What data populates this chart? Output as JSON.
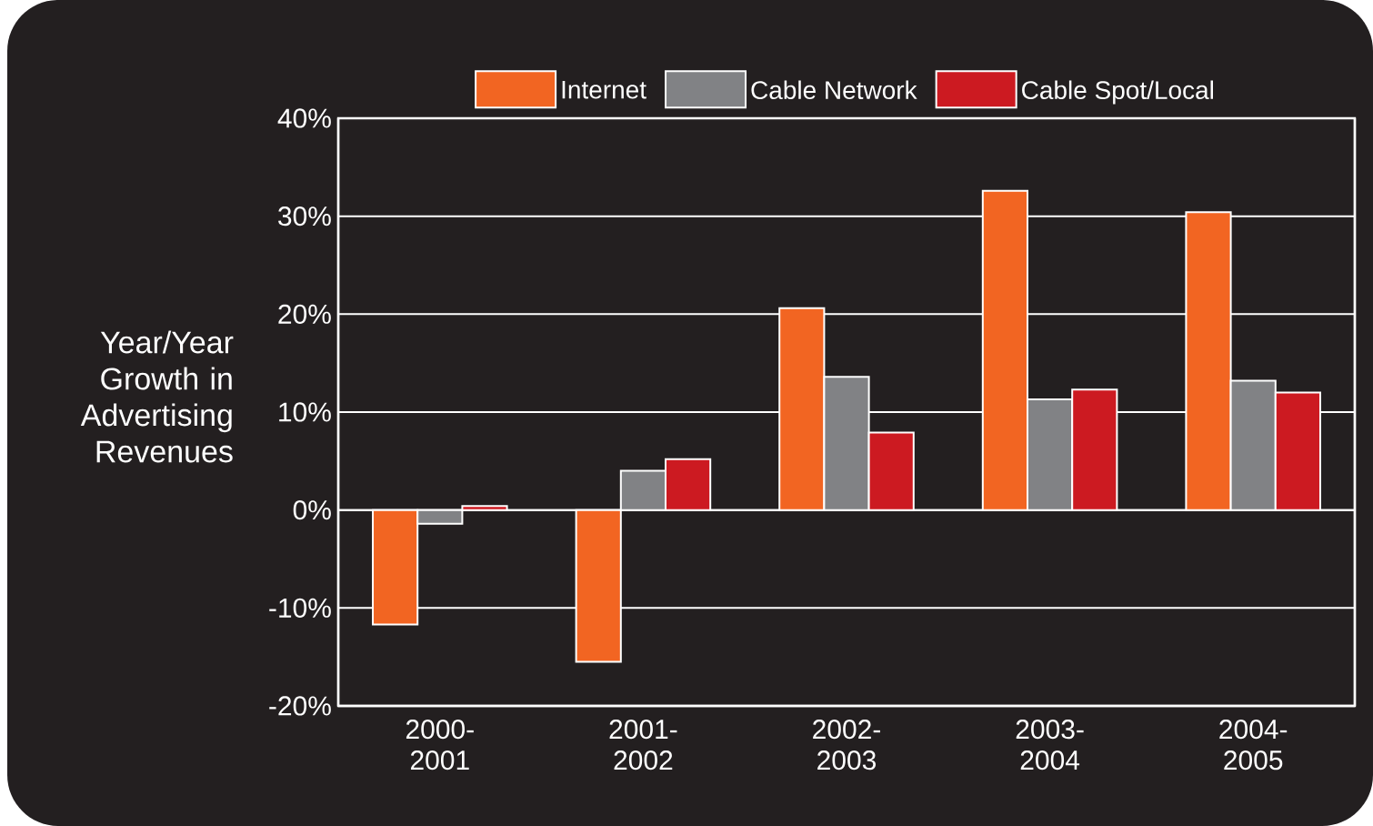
{
  "chart_data": {
    "type": "bar",
    "ylabel": "Year/Year Growth in Advertising Revenues",
    "categories": [
      "2000-2001",
      "2001-2002",
      "2002-2003",
      "2003-2004",
      "2004-2005"
    ],
    "series": [
      {
        "name": "Internet",
        "color": "#f26522",
        "values": [
          -11.7,
          -15.5,
          20.6,
          32.6,
          30.4
        ]
      },
      {
        "name": "Cable Network",
        "color": "#818285",
        "values": [
          -1.4,
          4.0,
          13.6,
          11.3,
          13.2
        ]
      },
      {
        "name": "Cable Spot/Local",
        "color": "#cc1a21",
        "values": [
          0.4,
          5.2,
          7.9,
          12.3,
          12.0
        ]
      }
    ],
    "ylim": [
      -20,
      40
    ],
    "yticks": [
      {
        "value": -20,
        "label": "-20%"
      },
      {
        "value": -10,
        "label": "-10%"
      },
      {
        "value": 0,
        "label": "0%"
      },
      {
        "value": 10,
        "label": "10%"
      },
      {
        "value": 20,
        "label": "20%"
      },
      {
        "value": 30,
        "label": "30%"
      },
      {
        "value": 40,
        "label": "40%"
      }
    ],
    "grid": "y",
    "legend": "top"
  }
}
